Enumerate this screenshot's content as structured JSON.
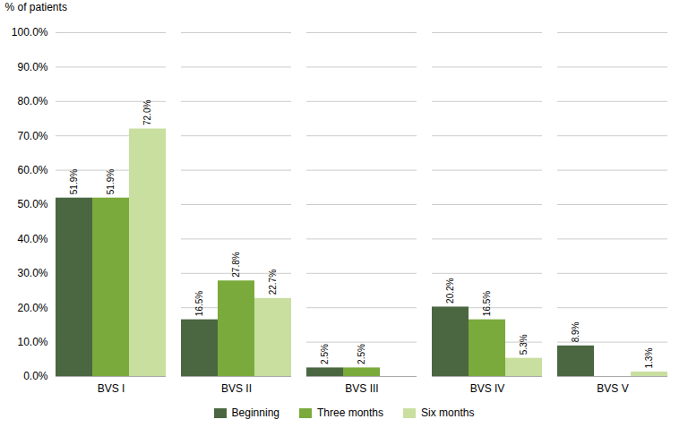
{
  "chart_data": {
    "type": "bar",
    "ylabel": "% of patients",
    "categories": [
      "BVS I",
      "BVS II",
      "BVS III",
      "BVS IV",
      "BVS V"
    ],
    "series": [
      {
        "name": "Beginning",
        "color": "#4a6741",
        "values": [
          51.9,
          16.5,
          2.5,
          20.2,
          8.9
        ],
        "value_labels": [
          "51.9%",
          "16.5%",
          "2.5%",
          "20.2%",
          "8.9%"
        ]
      },
      {
        "name": "Three months",
        "color": "#7aaa3b",
        "values": [
          51.9,
          27.8,
          2.5,
          16.5,
          0.0
        ],
        "value_labels": [
          "51.9%",
          "27.8%",
          "2.5%",
          "16.5%",
          null
        ]
      },
      {
        "name": "Six months",
        "color": "#c8dfa0",
        "values": [
          72.0,
          22.7,
          0.0,
          5.3,
          1.3
        ],
        "value_labels": [
          "72.0%",
          "22.7%",
          null,
          "5.3%",
          "1.3%"
        ]
      }
    ],
    "ylim": [
      0,
      100
    ],
    "yticks": [
      {
        "value": 0,
        "label": "0.0%"
      },
      {
        "value": 10,
        "label": "10.0%"
      },
      {
        "value": 20,
        "label": "20.0%"
      },
      {
        "value": 30,
        "label": "30.0%"
      },
      {
        "value": 40,
        "label": "40.0%"
      },
      {
        "value": 50,
        "label": "50.0%"
      },
      {
        "value": 60,
        "label": "60.0%"
      },
      {
        "value": 70,
        "label": "70.0%"
      },
      {
        "value": 80,
        "label": "80.0%"
      },
      {
        "value": 90,
        "label": "90.0%"
      },
      {
        "value": 100,
        "label": "100.0%"
      }
    ],
    "grid": true,
    "legend": "bottom",
    "data_labels": true
  }
}
